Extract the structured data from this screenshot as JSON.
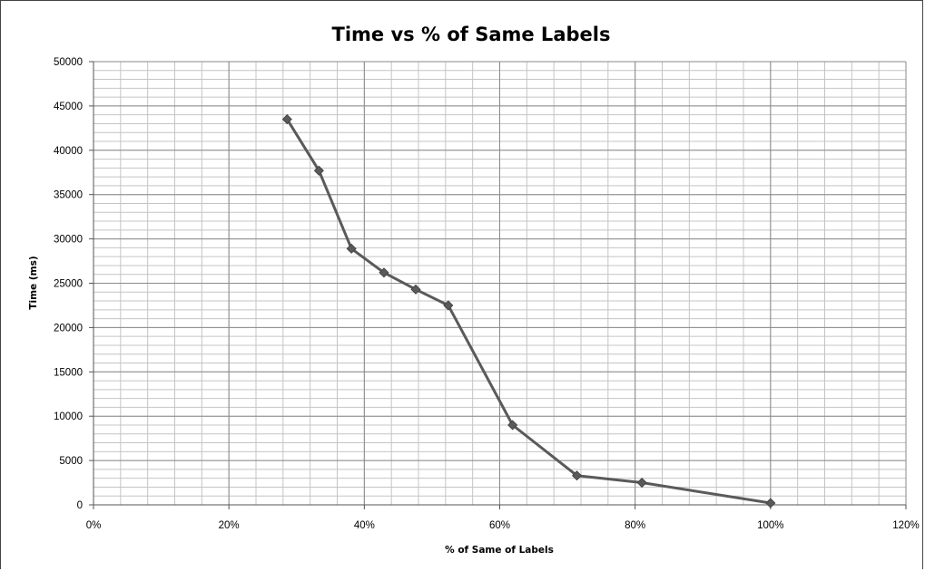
{
  "chart_data": {
    "type": "line",
    "title": "Time vs % of Same Labels",
    "xlabel": "% of Same of Labels",
    "ylabel": "Time (ms)",
    "xlim": [
      0,
      1.2
    ],
    "ylim": [
      0,
      50000
    ],
    "x_ticks": [
      "0%",
      "20%",
      "40%",
      "60%",
      "80%",
      "100%",
      "120%"
    ],
    "y_ticks": [
      "0",
      "5000",
      "10000",
      "15000",
      "20000",
      "25000",
      "30000",
      "35000",
      "40000",
      "45000",
      "50000"
    ],
    "grid": true,
    "legend": "none",
    "series": [
      {
        "x": [
          0.286,
          0.333,
          0.381,
          0.429,
          0.476,
          0.524,
          0.619,
          0.714,
          0.81,
          1.0
        ],
        "y": [
          43500,
          37700,
          28900,
          26200,
          24300,
          22500,
          9000,
          3300,
          2500,
          200
        ]
      }
    ],
    "line_color": "#5a5a5a",
    "marker": "diamond"
  }
}
